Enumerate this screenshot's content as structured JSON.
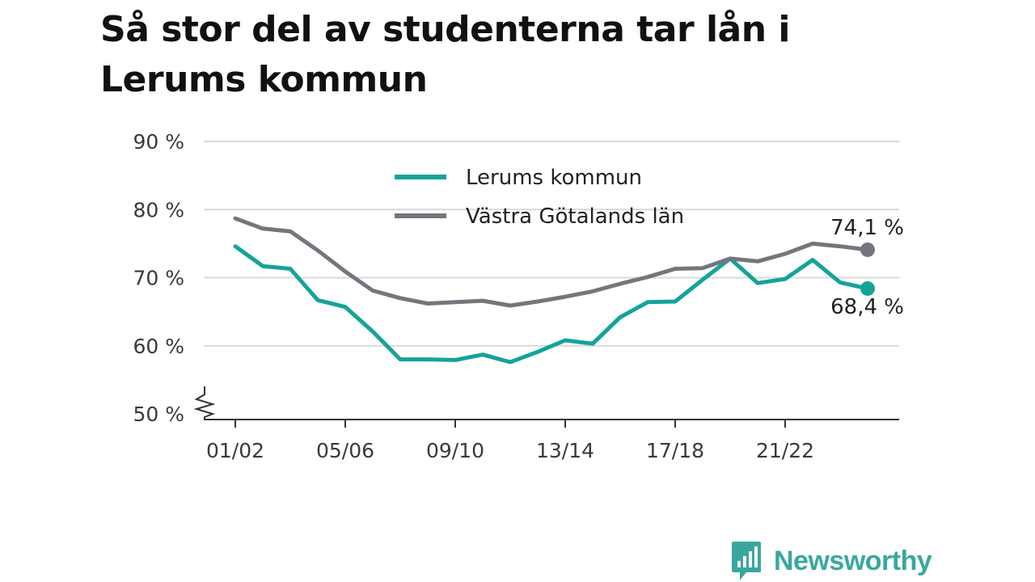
{
  "title": "Så stor del av studenterna tar lån i Lerums kommun",
  "brand": {
    "name": "Newsworthy",
    "logo_icon": "bar-chart-speech-bubble-icon",
    "color": "#3aa79f"
  },
  "chart_data": {
    "type": "line",
    "title": "Så stor del av studenterna tar lån i Lerums kommun",
    "xlabel": "",
    "ylabel": "",
    "ylim": [
      50,
      90
    ],
    "y_ticks": [
      {
        "value": 50,
        "label": "50 %"
      },
      {
        "value": 60,
        "label": "60 %"
      },
      {
        "value": 70,
        "label": "70 %"
      },
      {
        "value": 80,
        "label": "80 %"
      },
      {
        "value": 90,
        "label": "90 %"
      }
    ],
    "y_axis_break": true,
    "grid": true,
    "legend_position": "top-center",
    "x": [
      "01/02",
      "02/03",
      "03/04",
      "04/05",
      "05/06",
      "06/07",
      "07/08",
      "08/09",
      "09/10",
      "10/11",
      "11/12",
      "12/13",
      "13/14",
      "14/15",
      "15/16",
      "16/17",
      "17/18",
      "18/19",
      "19/20",
      "20/21",
      "21/22",
      "22/23",
      "23/24",
      "24/25"
    ],
    "x_tick_labels": [
      "01/02",
      "05/06",
      "09/10",
      "13/14",
      "17/18",
      "21/22"
    ],
    "series": [
      {
        "name": "Lerums kommun",
        "color": "#14a39a",
        "values": [
          74.6,
          71.7,
          71.3,
          66.7,
          65.7,
          62.1,
          58.0,
          58.0,
          57.9,
          58.7,
          57.6,
          59.1,
          60.8,
          60.3,
          64.2,
          66.4,
          66.5,
          69.7,
          72.8,
          69.2,
          69.8,
          72.6,
          69.3,
          68.4
        ],
        "end_label": "68,4 %"
      },
      {
        "name": "Västra Götalands län",
        "color": "#75757d",
        "values": [
          78.7,
          77.2,
          76.8,
          74.0,
          70.9,
          68.1,
          67.0,
          66.2,
          66.4,
          66.6,
          65.9,
          66.5,
          67.2,
          68.0,
          69.1,
          70.1,
          71.3,
          71.4,
          72.8,
          72.4,
          73.5,
          75.0,
          74.6,
          74.1
        ],
        "end_label": "74,1 %"
      }
    ]
  }
}
